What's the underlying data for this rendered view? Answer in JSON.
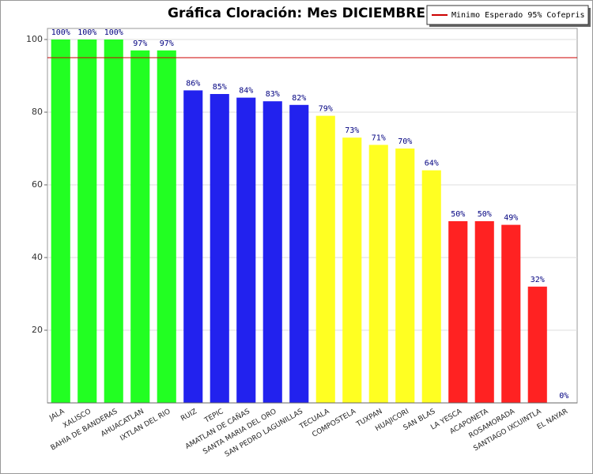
{
  "chart_data": {
    "type": "bar",
    "title": "Gráfica Cloración: Mes DICIEMBRE",
    "categories": [
      "JALA",
      "XALISCO",
      "BAHIA DE BANDERAS",
      "AHUACATLAN",
      "IXTLAN DEL RIO",
      "RUIZ",
      "TEPIC",
      "AMATLAN DE CAÑAS",
      "SANTA MARIA DEL ORO",
      "SAN PEDRO LAGUNILLAS",
      "TECUALA",
      "COMPOSTELA",
      "TUXPAN",
      "HUAJICORI",
      "SAN BLAS",
      "LA YESCA",
      "ACAPONETA",
      "ROSAMORADA",
      "SANTIAGO IXCUINTLA",
      "EL NAYAR"
    ],
    "values": [
      100,
      100,
      100,
      97,
      97,
      86,
      85,
      84,
      83,
      82,
      79,
      73,
      71,
      70,
      64,
      50,
      50,
      49,
      32,
      0
    ],
    "value_labels": [
      "100%",
      "100%",
      "100%",
      "97%",
      "97%",
      "86%",
      "85%",
      "84%",
      "83%",
      "82%",
      "79%",
      "73%",
      "71%",
      "70%",
      "64%",
      "50%",
      "50%",
      "49%",
      "32%",
      "0%"
    ],
    "colors": [
      "#22ff22",
      "#22ff22",
      "#22ff22",
      "#22ff22",
      "#22ff22",
      "#2222ee",
      "#2222ee",
      "#2222ee",
      "#2222ee",
      "#2222ee",
      "#ffff22",
      "#ffff22",
      "#ffff22",
      "#ffff22",
      "#ffff22",
      "#ff2222",
      "#ff2222",
      "#ff2222",
      "#ff2222",
      "#ff2222"
    ],
    "ylim": [
      0,
      100
    ],
    "yticks": [
      20,
      40,
      60,
      80,
      100
    ],
    "grid": true,
    "reference_line": {
      "value": 95,
      "label": "Minimo Esperado 95% Cofepris",
      "color": "#cc0000"
    },
    "legend_position": "top-right"
  }
}
